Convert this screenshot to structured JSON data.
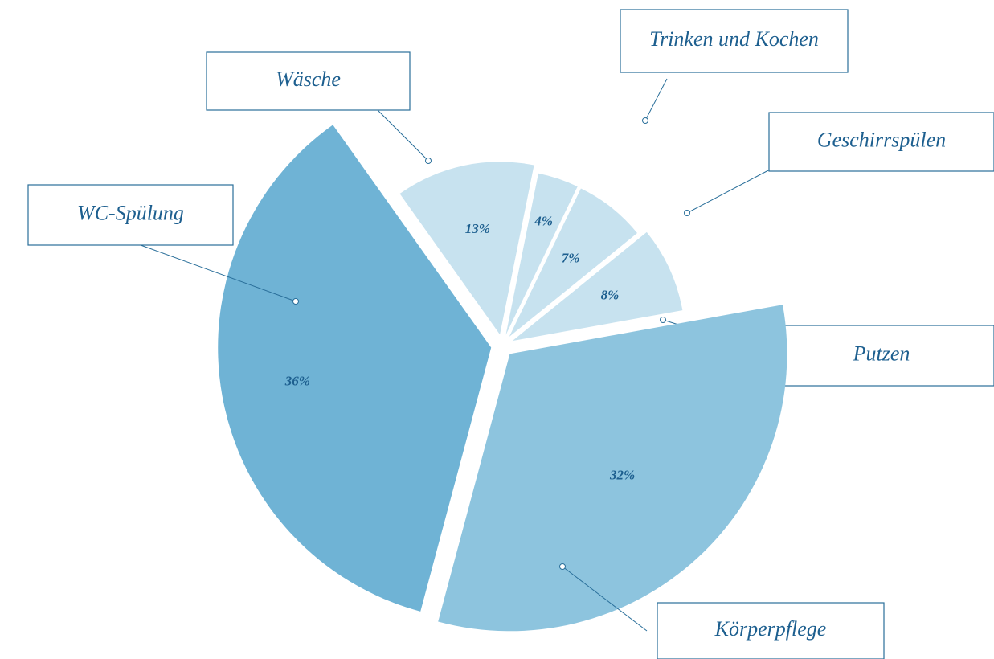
{
  "chart_data": {
    "type": "pie",
    "categories": [
      "WC-Spülung",
      "Wäsche",
      "Trinken und Kochen",
      "Geschirrspülen",
      "Putzen",
      "Körperpflege"
    ],
    "values": [
      36,
      13,
      4,
      7,
      8,
      32
    ],
    "value_labels": [
      "36%",
      "13%",
      "4%",
      "7%",
      "8%",
      "32%"
    ],
    "colors": [
      "#6fb3d5",
      "#c7e2ef",
      "#c7e2ef",
      "#c7e2ef",
      "#c7e2ef",
      "#8dc4de"
    ]
  }
}
